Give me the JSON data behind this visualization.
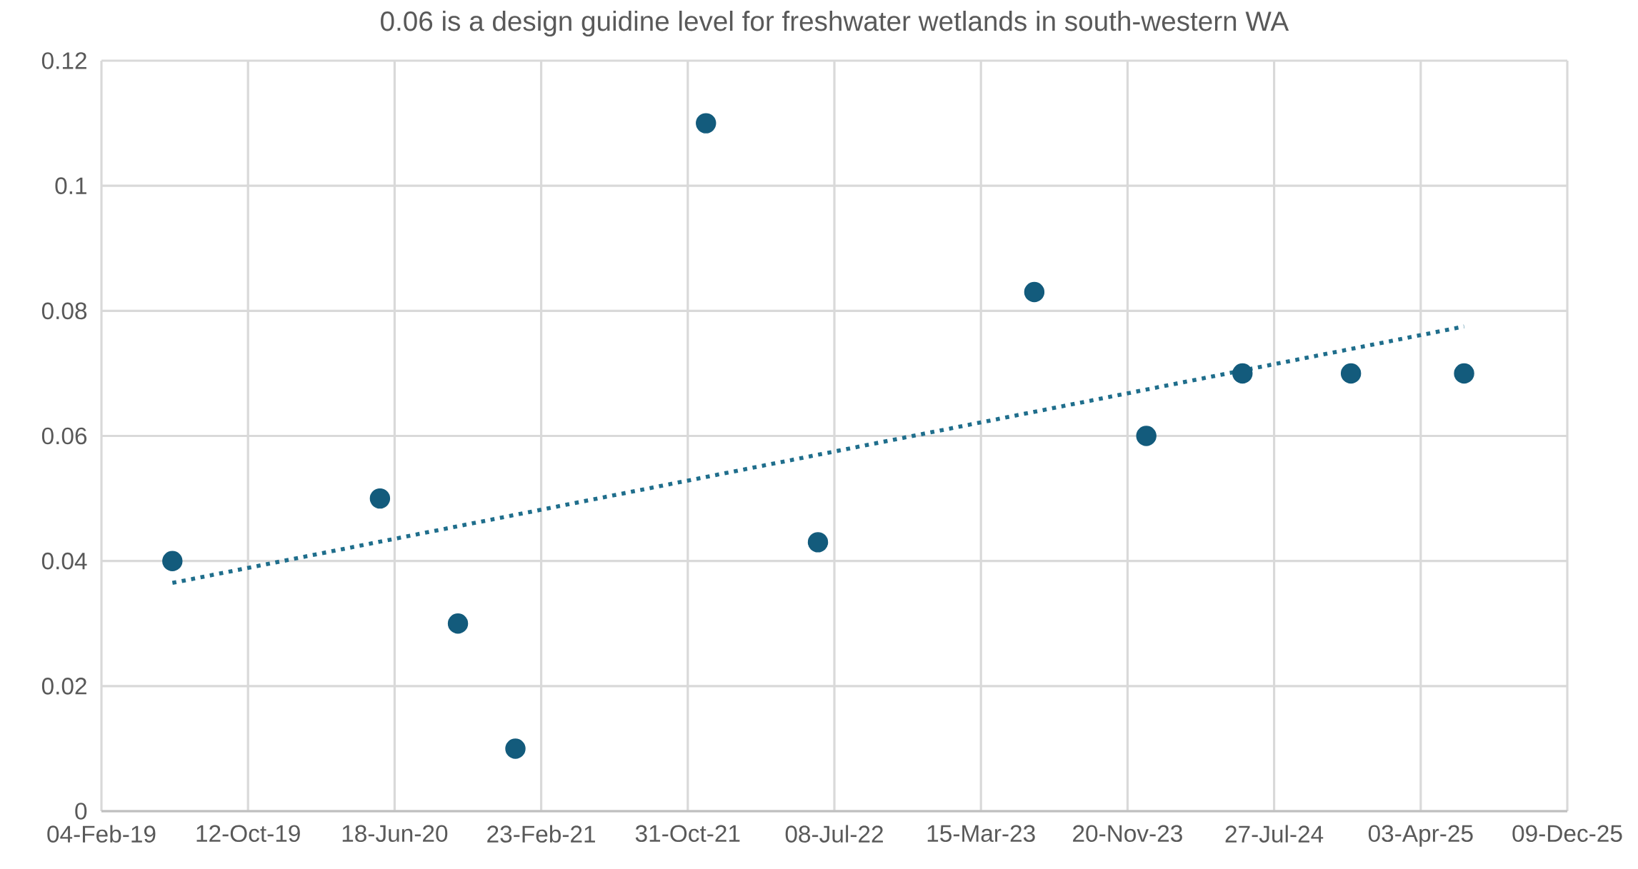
{
  "chart_data": {
    "type": "scatter",
    "title": "0.06 is a design guidine level for freshwater wetlands in south-western WA",
    "x": [
      "2019-06-05",
      "2020-05-24",
      "2020-10-04",
      "2021-01-10",
      "2021-12-01",
      "2022-06-10",
      "2023-06-14",
      "2023-12-22",
      "2024-06-03",
      "2024-12-05",
      "2025-06-16"
    ],
    "series": [
      {
        "color": "#135b7c",
        "values": [
          0.04,
          0.05,
          0.03,
          0.01,
          0.11,
          0.043,
          0.083,
          0.06,
          0.07,
          0.07,
          0.07
        ],
        "marker": "circle"
      },
      {
        "type": "line",
        "x": [
          "2019-06-05",
          "2025-06-16"
        ],
        "values": [
          0.0365,
          0.0775
        ],
        "color": "#1f6e8c",
        "line_style": "dotted",
        "marker": "none"
      }
    ],
    "xlim": [
      "2019-02-04",
      "2025-12-09"
    ],
    "xticks": [
      {
        "value": "2019-02-04",
        "label": "04-Feb-19"
      },
      {
        "value": "2019-10-12",
        "label": "12-Oct-19"
      },
      {
        "value": "2020-06-18",
        "label": "18-Jun-20"
      },
      {
        "value": "2021-02-23",
        "label": "23-Feb-21"
      },
      {
        "value": "2021-10-31",
        "label": "31-Oct-21"
      },
      {
        "value": "2022-07-08",
        "label": "08-Jul-22"
      },
      {
        "value": "2023-03-15",
        "label": "15-Mar-23"
      },
      {
        "value": "2023-11-20",
        "label": "20-Nov-23"
      },
      {
        "value": "2024-07-27",
        "label": "27-Jul-24"
      },
      {
        "value": "2025-04-03",
        "label": "03-Apr-25"
      },
      {
        "value": "2025-12-09",
        "label": "09-Dec-25"
      }
    ],
    "ylim": [
      0,
      0.12
    ],
    "yticks": [
      0,
      0.02,
      0.04,
      0.06,
      0.08,
      0.1,
      0.12
    ],
    "grid": true
  }
}
